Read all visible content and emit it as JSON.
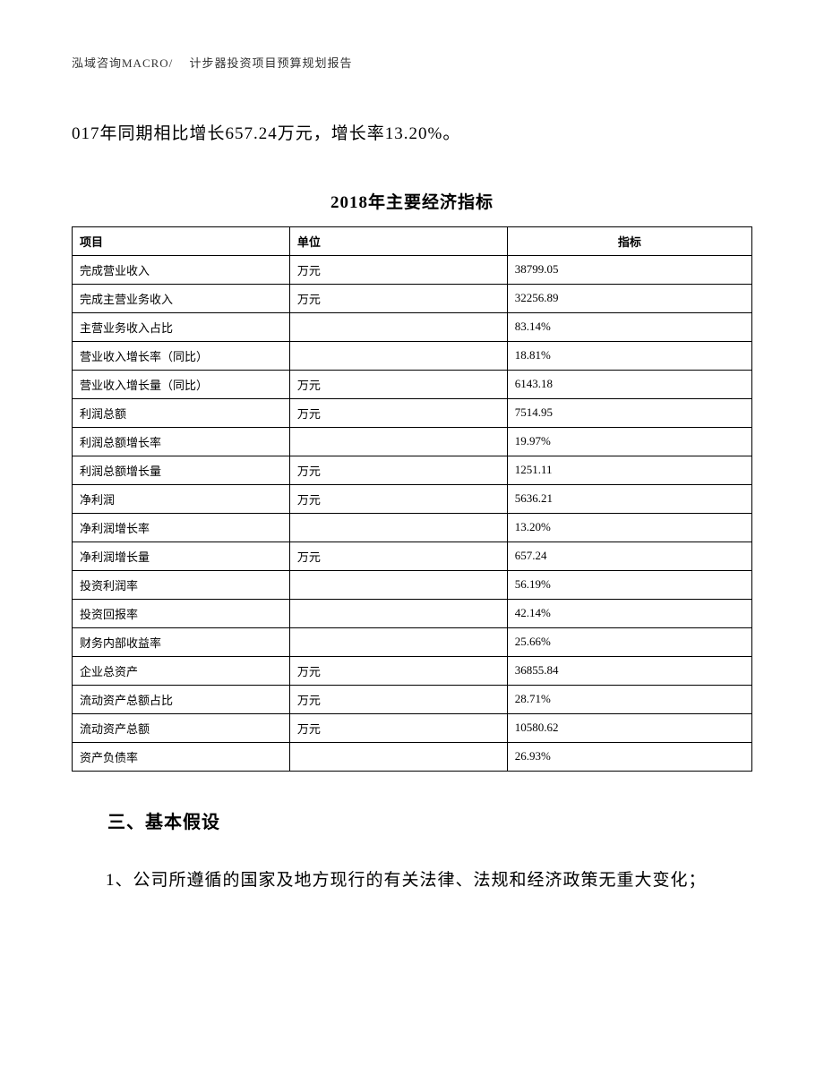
{
  "header": "泓域咨询MACRO/　 计步器投资项目预算规划报告",
  "intro_text": "017年同期相比增长657.24万元，增长率13.20%。",
  "table": {
    "title": "2018年主要经济指标",
    "columns": {
      "item": "项目",
      "unit": "单位",
      "value": "指标"
    },
    "rows": [
      {
        "item": "完成营业收入",
        "unit": "万元",
        "value": "38799.05"
      },
      {
        "item": "完成主营业务收入",
        "unit": "万元",
        "value": "32256.89"
      },
      {
        "item": "主营业务收入占比",
        "unit": "",
        "value": "83.14%"
      },
      {
        "item": "营业收入增长率（同比）",
        "unit": "",
        "value": "18.81%"
      },
      {
        "item": "营业收入增长量（同比）",
        "unit": "万元",
        "value": "6143.18"
      },
      {
        "item": "利润总额",
        "unit": "万元",
        "value": "7514.95"
      },
      {
        "item": "利润总额增长率",
        "unit": "",
        "value": "19.97%"
      },
      {
        "item": "利润总额增长量",
        "unit": "万元",
        "value": "1251.11"
      },
      {
        "item": "净利润",
        "unit": "万元",
        "value": "5636.21"
      },
      {
        "item": "净利润增长率",
        "unit": "",
        "value": "13.20%"
      },
      {
        "item": "净利润增长量",
        "unit": "万元",
        "value": "657.24"
      },
      {
        "item": "投资利润率",
        "unit": "",
        "value": "56.19%"
      },
      {
        "item": "投资回报率",
        "unit": "",
        "value": "42.14%"
      },
      {
        "item": "财务内部收益率",
        "unit": "",
        "value": "25.66%"
      },
      {
        "item": "企业总资产",
        "unit": "万元",
        "value": "36855.84"
      },
      {
        "item": "流动资产总额占比",
        "unit": "万元",
        "value": "28.71%"
      },
      {
        "item": "流动资产总额",
        "unit": "万元",
        "value": "10580.62"
      },
      {
        "item": "资产负债率",
        "unit": "",
        "value": "26.93%"
      }
    ]
  },
  "section": {
    "heading": "三、基本假设",
    "body": "1、公司所遵循的国家及地方现行的有关法律、法规和经济政策无重大变化；"
  }
}
